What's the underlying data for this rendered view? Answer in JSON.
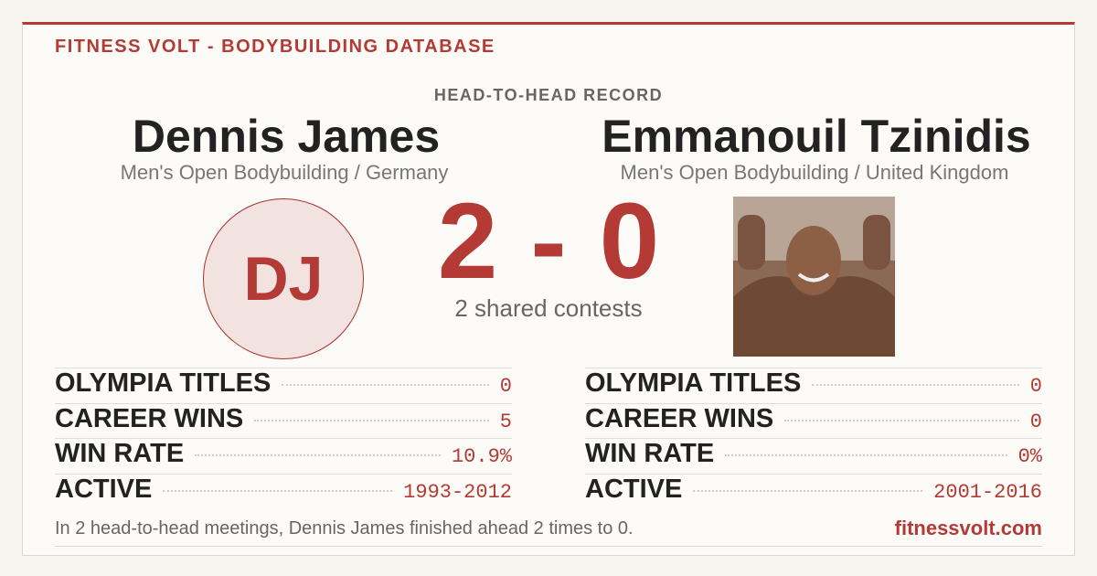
{
  "brand": "FITNESS VOLT - BODYBUILDING DATABASE",
  "heading": "HEAD-TO-HEAD RECORD",
  "left": {
    "name": "Dennis James",
    "subtitle": "Men's Open Bodybuilding / Germany",
    "initials": "DJ",
    "stats": [
      {
        "label": "OLYMPIA TITLES",
        "value": "0"
      },
      {
        "label": "CAREER WINS",
        "value": "5"
      },
      {
        "label": "WIN RATE",
        "value": "10.9%"
      },
      {
        "label": "ACTIVE",
        "value": "1993-2012"
      }
    ]
  },
  "right": {
    "name": "Emmanouil Tzinidis",
    "subtitle": "Men's Open Bodybuilding / United Kingdom",
    "stats": [
      {
        "label": "OLYMPIA TITLES",
        "value": "0"
      },
      {
        "label": "CAREER WINS",
        "value": "0"
      },
      {
        "label": "WIN RATE",
        "value": "0%"
      },
      {
        "label": "ACTIVE",
        "value": "2001-2016"
      }
    ]
  },
  "score": {
    "left": "2",
    "separator": "-",
    "right": "0",
    "caption": "2 shared contests"
  },
  "footer": {
    "summary": "In 2 head-to-head meetings, Dennis James finished ahead 2 times to 0.",
    "site": "fitnessvolt.com"
  }
}
